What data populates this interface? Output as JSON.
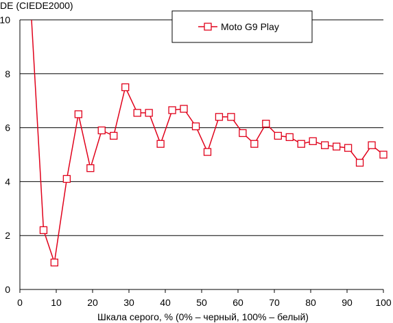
{
  "chart_data": {
    "type": "line",
    "ylabel": "DE (CIEDE2000)",
    "xlabel": "Шкала серого, % (0% – черный, 100% – белый)",
    "xlim": [
      0,
      100
    ],
    "ylim": [
      0,
      10
    ],
    "x_ticks": [
      "0",
      "10",
      "20",
      "30",
      "40",
      "50",
      "60",
      "70",
      "80",
      "90",
      "100"
    ],
    "y_ticks": [
      "0",
      "2",
      "4",
      "6",
      "8",
      "10"
    ],
    "grid": "horizontal",
    "legend_position": "top-center",
    "series": [
      {
        "name": "Moto G9 Play",
        "color": "#e0001a",
        "marker": "square",
        "x": [
          6.5,
          9.5,
          12.9,
          16.1,
          19.4,
          22.5,
          25.8,
          29.0,
          32.3,
          35.5,
          38.7,
          41.9,
          45.1,
          48.4,
          51.6,
          54.8,
          58.1,
          61.3,
          64.5,
          67.7,
          71.0,
          74.2,
          77.4,
          80.6,
          83.9,
          87.1,
          90.3,
          93.5,
          96.8,
          100
        ],
        "y": [
          2.2,
          1.0,
          4.1,
          6.5,
          4.5,
          5.9,
          5.7,
          7.5,
          6.55,
          6.55,
          5.4,
          6.65,
          6.7,
          6.05,
          5.1,
          6.4,
          6.4,
          5.8,
          5.4,
          6.15,
          5.7,
          5.65,
          5.4,
          5.5,
          5.35,
          5.3,
          5.25,
          4.7,
          5.35,
          5.0
        ]
      }
    ],
    "offscale_start": {
      "x": 3.2,
      "y": 10
    }
  }
}
